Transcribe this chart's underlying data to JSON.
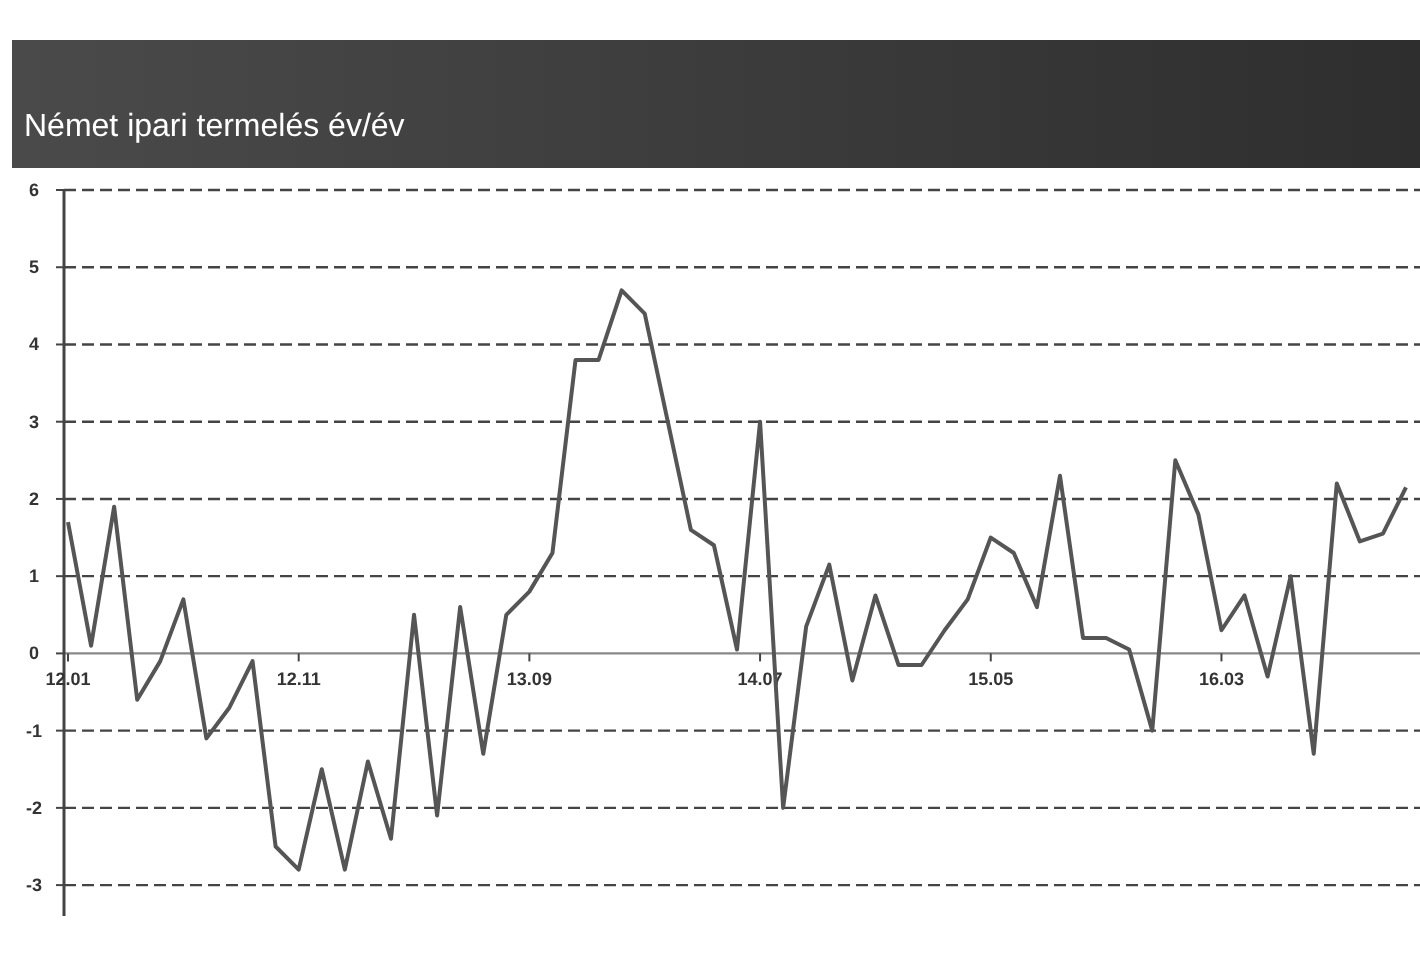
{
  "chart_data": {
    "type": "line",
    "title": "Német ipari termelés év/év",
    "categories": [
      "12.01",
      null,
      null,
      null,
      null,
      null,
      null,
      null,
      null,
      null,
      "12.11",
      null,
      null,
      null,
      null,
      null,
      null,
      null,
      null,
      null,
      "13.09",
      null,
      null,
      null,
      null,
      null,
      null,
      null,
      null,
      null,
      "14.07",
      null,
      null,
      null,
      null,
      null,
      null,
      null,
      null,
      null,
      "15.05",
      null,
      null,
      null,
      null,
      null,
      null,
      null,
      null,
      null,
      "16.03",
      null,
      null,
      null,
      null,
      null,
      null,
      null,
      null
    ],
    "series": [
      {
        "color": "#555555",
        "values": [
          1.7,
          0.1,
          1.9,
          -0.6,
          -0.1,
          0.7,
          -1.1,
          -0.7,
          -0.1,
          -2.5,
          -2.8,
          -1.5,
          -2.8,
          -1.4,
          -2.4,
          0.5,
          -2.1,
          0.6,
          -1.3,
          0.5,
          0.8,
          1.3,
          3.8,
          3.8,
          4.7,
          4.4,
          3.0,
          1.6,
          1.4,
          0.05,
          3.0,
          -2.0,
          0.35,
          1.15,
          -0.35,
          0.75,
          -0.15,
          -0.15,
          0.3,
          0.7,
          1.5,
          1.3,
          0.6,
          2.3,
          0.2,
          0.2,
          0.05,
          -1.0,
          2.5,
          1.8,
          0.3,
          0.75,
          -0.3,
          1.0,
          -1.3,
          2.2,
          1.45,
          1.55,
          2.15
        ]
      }
    ],
    "ylim": [
      -3.4,
      6
    ],
    "yticks": [
      -3,
      -2,
      -1,
      0,
      1,
      2,
      3,
      4,
      5,
      6
    ],
    "grid": "y",
    "line_style": "solid",
    "marker": "none"
  }
}
